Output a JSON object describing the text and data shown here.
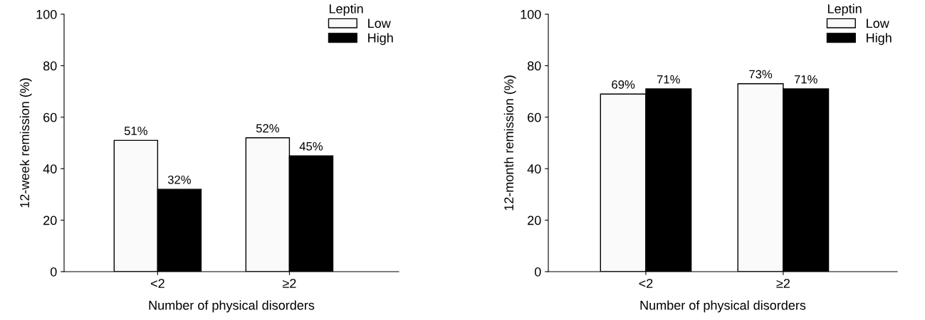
{
  "chart_data": [
    {
      "type": "bar",
      "categories": [
        "<2",
        "≥2"
      ],
      "xlabel": "Number of physical disorders",
      "ylabel": "12-week remission (%)",
      "ylim": [
        0,
        100
      ],
      "yticks": [
        0,
        20,
        40,
        60,
        80,
        100
      ],
      "legend": "top right",
      "legend_title": "Leptin",
      "grid": false,
      "series": [
        {
          "name": "Low",
          "color": "#fafafa",
          "values": [
            51,
            52
          ],
          "value_labels": [
            "51%",
            "52%"
          ]
        },
        {
          "name": "High",
          "color": "#000000",
          "values": [
            32,
            45
          ],
          "value_labels": [
            "32%",
            "45%"
          ]
        }
      ]
    },
    {
      "type": "bar",
      "categories": [
        "<2",
        "≥2"
      ],
      "xlabel": "Number of physical disorders",
      "ylabel": "12-month remission (%)",
      "ylim": [
        0,
        100
      ],
      "yticks": [
        0,
        20,
        40,
        60,
        80,
        100
      ],
      "legend": "top right",
      "legend_title": "Leptin",
      "grid": false,
      "series": [
        {
          "name": "Low",
          "color": "#fafafa",
          "values": [
            69,
            73
          ],
          "value_labels": [
            "69%",
            "73%"
          ]
        },
        {
          "name": "High",
          "color": "#000000",
          "values": [
            71,
            71
          ],
          "value_labels": [
            "71%",
            "71%"
          ]
        }
      ]
    }
  ]
}
